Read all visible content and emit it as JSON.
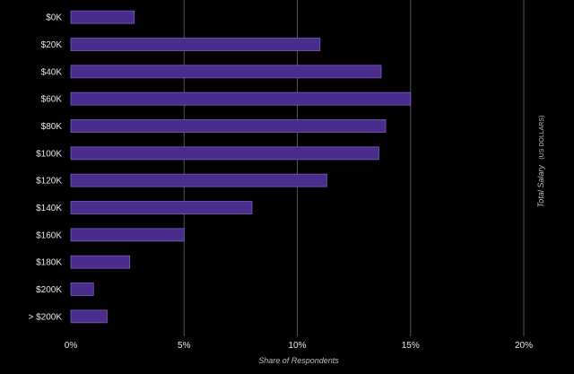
{
  "chart_data": {
    "type": "bar",
    "orientation": "horizontal",
    "categories": [
      "$0K",
      "$20K",
      "$40K",
      "$60K",
      "$80K",
      "$100K",
      "$120K",
      "$140K",
      "$160K",
      "$180K",
      "$200K",
      "> $200K"
    ],
    "values": [
      2.8,
      11.0,
      13.7,
      15.0,
      13.9,
      13.6,
      11.3,
      8.0,
      5.0,
      2.6,
      1.0,
      1.6
    ],
    "xlim": [
      0,
      20
    ],
    "x_ticks": [
      "0%",
      "5%",
      "10%",
      "15%",
      "20%"
    ],
    "xlabel": "Share of Respondents",
    "ylabel": "Total Salary",
    "ylabel_unit": "(US DOLLARS)",
    "grid": "vertical",
    "colors": {
      "background": "#000000",
      "bar": "#4a2c8c",
      "bar_edge": "#7b5cc4",
      "grid": "#555555",
      "text": "#e6e6e6"
    }
  }
}
